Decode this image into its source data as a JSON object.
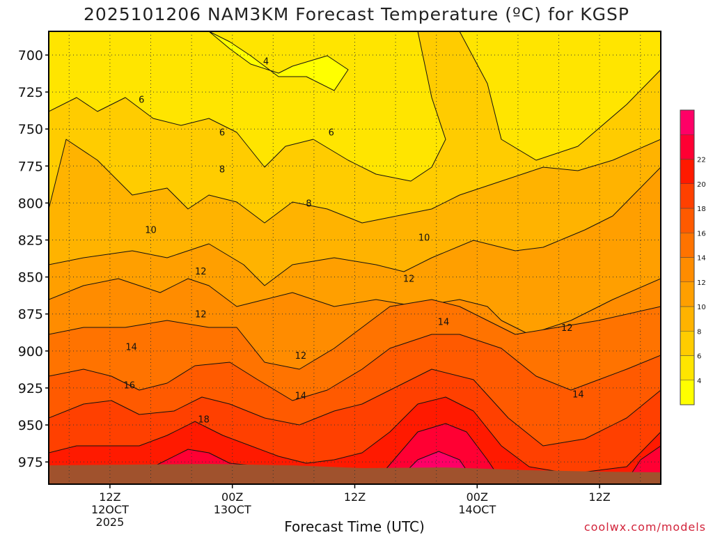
{
  "title": "2025101206 NAM3KM Forecast Temperature (ºC) for KGSP",
  "xlabel": "Forecast Time (UTC)",
  "credit": "coolwx.com/models",
  "chart_data": {
    "type": "contour",
    "title": "2025101206 NAM3KM Forecast Temperature (ºC) for KGSP",
    "xlabel": "Forecast Time (UTC)",
    "ylabel": "",
    "y_axis": {
      "ticks": [
        700,
        725,
        750,
        775,
        800,
        825,
        850,
        875,
        900,
        925,
        950,
        975
      ],
      "inverted": true,
      "range": [
        684,
        990
      ]
    },
    "x_axis": {
      "range_hours_from_init": [
        0,
        60
      ],
      "ticks": [
        {
          "hour": 6,
          "line1": "12Z",
          "line2": "12OCT",
          "line3": "2025"
        },
        {
          "hour": 18,
          "line1": "00Z",
          "line2": "13OCT",
          "line3": ""
        },
        {
          "hour": 30,
          "line1": "12Z",
          "line2": "",
          "line3": ""
        },
        {
          "hour": 42,
          "line1": "00Z",
          "line2": "14OCT",
          "line3": ""
        },
        {
          "hour": 54,
          "line1": "12Z",
          "line2": "",
          "line3": ""
        }
      ]
    },
    "grid": "dotted horizontal and vertical",
    "colorbar": {
      "placement": "right",
      "labels": [
        4,
        6,
        8,
        10,
        12,
        14,
        16,
        18,
        20,
        22
      ],
      "colors": [
        "#ffff00",
        "#ffe500",
        "#ffcc00",
        "#ffb300",
        "#ff9f00",
        "#ff8c00",
        "#ff7300",
        "#ff5a00",
        "#ff4000",
        "#ff1a00",
        "#ff0033",
        "#ff0066"
      ]
    },
    "contour_labels": [
      {
        "text": "4",
        "hour": 21.3,
        "p": 704
      },
      {
        "text": "6",
        "hour": 9.1,
        "p": 730
      },
      {
        "text": "6",
        "hour": 17.0,
        "p": 752
      },
      {
        "text": "6",
        "hour": 27.7,
        "p": 752
      },
      {
        "text": "8",
        "hour": 17.0,
        "p": 777
      },
      {
        "text": "8",
        "hour": 25.5,
        "p": 800
      },
      {
        "text": "10",
        "hour": 10.0,
        "p": 818
      },
      {
        "text": "10",
        "hour": 36.8,
        "p": 823
      },
      {
        "text": "12",
        "hour": 14.9,
        "p": 846
      },
      {
        "text": "12",
        "hour": 14.9,
        "p": 875
      },
      {
        "text": "12",
        "hour": 35.3,
        "p": 851
      },
      {
        "text": "12",
        "hour": 50.8,
        "p": 884
      },
      {
        "text": "12",
        "hour": 24.7,
        "p": 903
      },
      {
        "text": "14",
        "hour": 8.1,
        "p": 897
      },
      {
        "text": "14",
        "hour": 38.7,
        "p": 880
      },
      {
        "text": "14",
        "hour": 24.7,
        "p": 930
      },
      {
        "text": "14",
        "hour": 51.9,
        "p": 929
      },
      {
        "text": "16",
        "hour": 7.9,
        "p": 923
      },
      {
        "text": "18",
        "hour": 15.2,
        "p": 946
      }
    ],
    "terrain_color": "#a0522d"
  }
}
